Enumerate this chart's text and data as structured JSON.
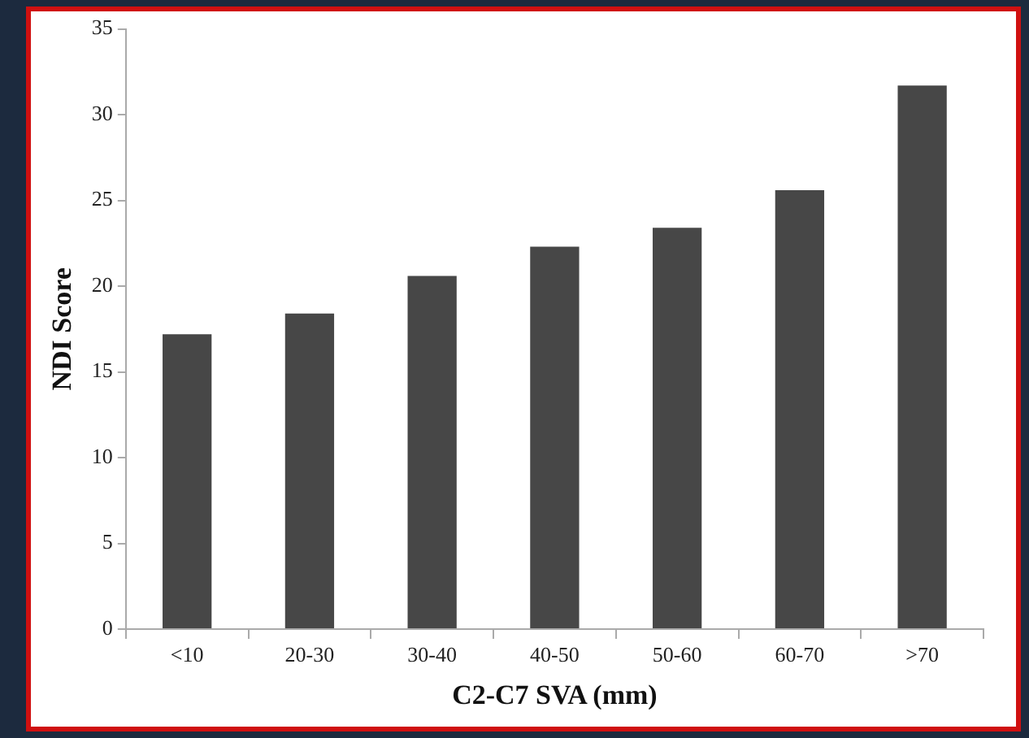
{
  "chart_data": {
    "type": "bar",
    "xlabel": "C2-C7 SVA (mm)",
    "ylabel": "NDI Score",
    "categories": [
      "<10",
      "20-30",
      "30-40",
      "40-50",
      "50-60",
      "60-70",
      ">70"
    ],
    "values": [
      17.2,
      18.4,
      20.6,
      22.3,
      23.4,
      25.6,
      31.7
    ],
    "color": "#474747",
    "ylim": [
      0,
      35
    ],
    "yticks": [
      0,
      5,
      10,
      15,
      20,
      25,
      30,
      35
    ],
    "grid": false
  }
}
